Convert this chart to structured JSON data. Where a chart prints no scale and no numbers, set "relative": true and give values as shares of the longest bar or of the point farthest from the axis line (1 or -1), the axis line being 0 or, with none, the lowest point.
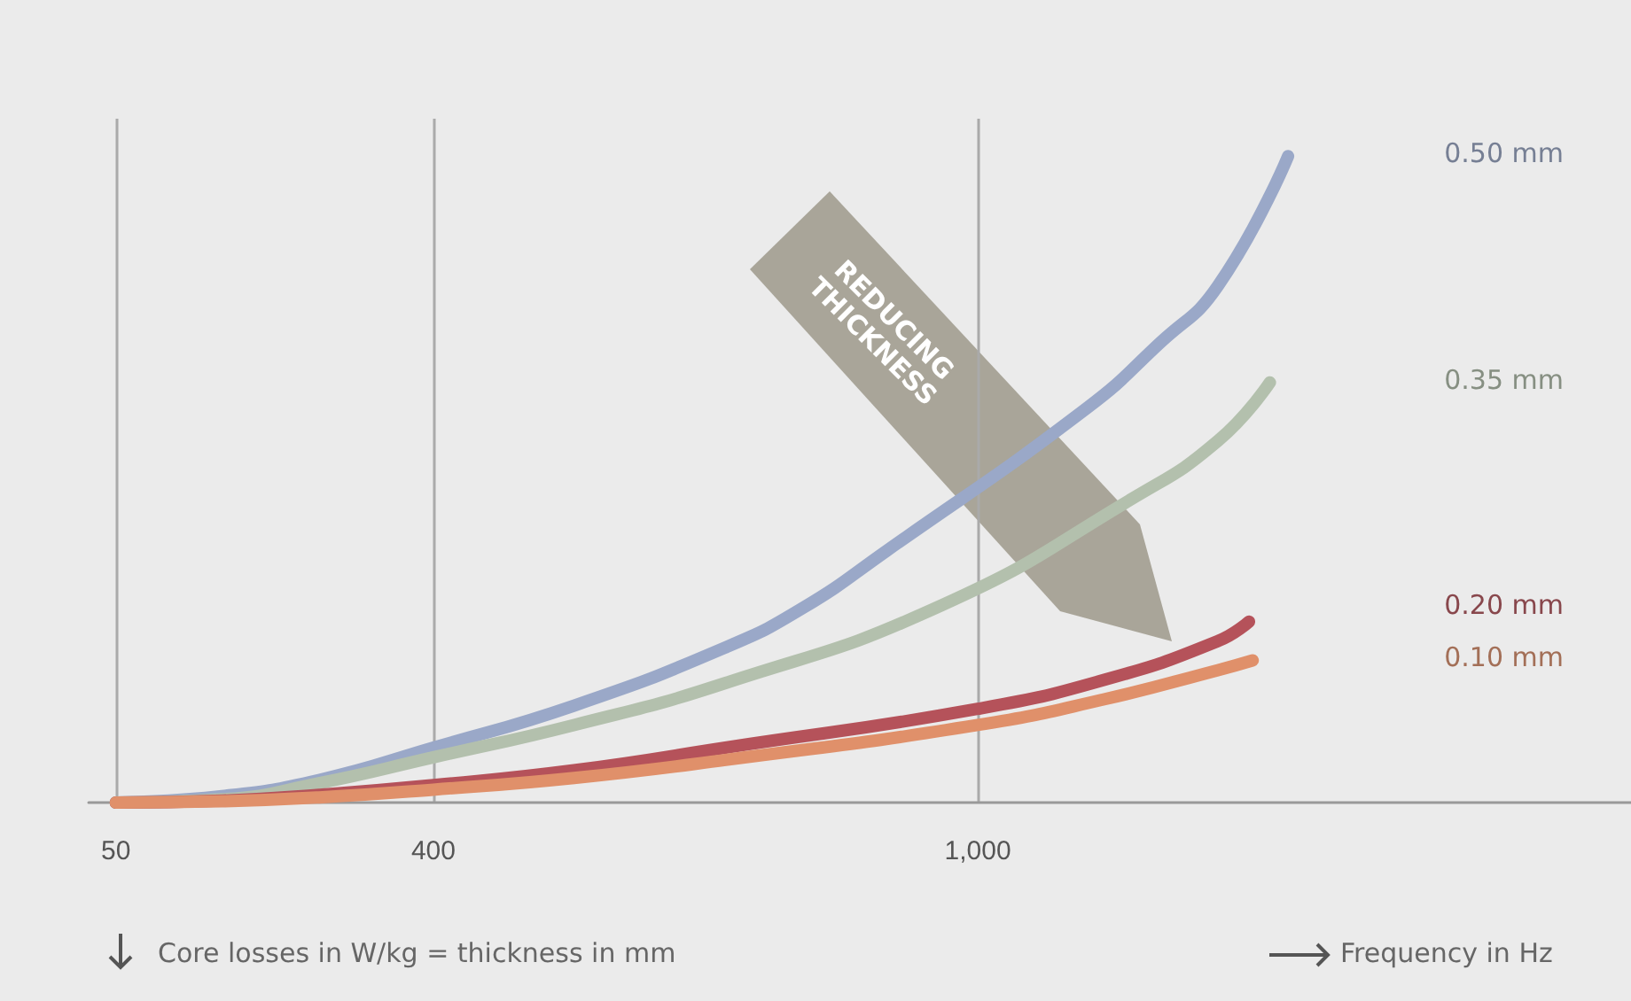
{
  "chart_data": {
    "type": "line",
    "relative": true,
    "xlabel": "Frequency in Hz",
    "xlim": [
      20,
      1720
    ],
    "xticks": [
      50,
      400,
      {
        "value": 1000,
        "label": "1,000"
      }
    ],
    "grid": "x",
    "annotations": [
      "REDUCING THICKNESS",
      "Core losses in W/kg = thickness in mm"
    ],
    "series": [
      {
        "name": "0.50 mm",
        "color": "#9aa8c8",
        "x": [
          50,
          167,
          274,
          400,
          555,
          722,
          806,
          900,
          1120,
          1200,
          1265,
          1342
        ],
        "values": [
          0,
          0.01,
          0.035,
          0.085,
          0.15,
          0.24,
          0.3,
          0.39,
          0.61,
          0.71,
          0.8,
          1
        ]
      },
      {
        "name": "0.35 mm",
        "color": "#b3c0ad",
        "x": [
          50,
          167,
          274,
          400,
          555,
          722,
          960,
          1170,
          1265,
          1322
        ],
        "values": [
          0,
          0.005,
          0.03,
          0.07,
          0.12,
          0.185,
          0.305,
          0.47,
          0.56,
          0.65
        ]
      },
      {
        "name": "0.20 mm",
        "color": "#b5525a",
        "x": [
          50,
          167,
          274,
          400,
          555,
          722,
          1000,
          1140,
          1265,
          1299
        ],
        "values": [
          0,
          0.003,
          0.012,
          0.027,
          0.05,
          0.085,
          0.145,
          0.19,
          0.25,
          0.28
        ]
      },
      {
        "name": "0.10 mm",
        "color": "#e0906a",
        "x": [
          50,
          167,
          274,
          400,
          555,
          722,
          1000,
          1140,
          1265,
          1303
        ],
        "values": [
          0,
          0.002,
          0.008,
          0.02,
          0.038,
          0.066,
          0.12,
          0.16,
          0.205,
          0.22
        ]
      }
    ]
  }
}
